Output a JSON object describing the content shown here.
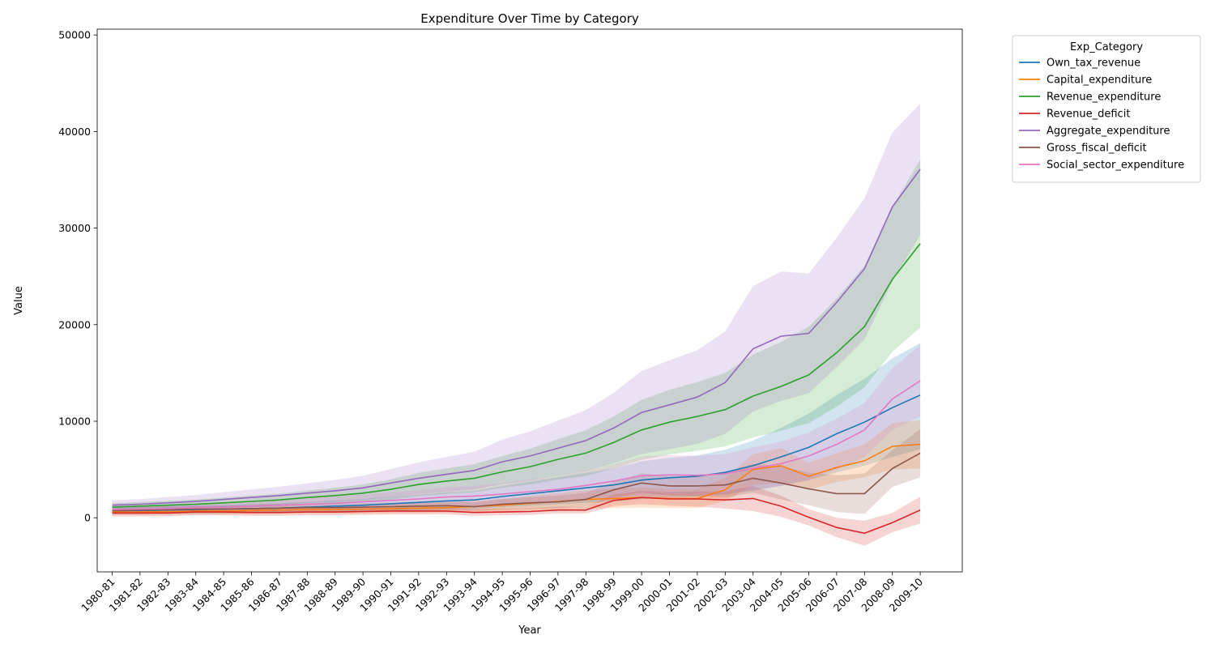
{
  "chart_data": {
    "type": "line",
    "title": "Expenditure Over Time by Category",
    "xlabel": "Year",
    "ylabel": "Value",
    "ylim": [
      -5600,
      50600
    ],
    "yticks": [
      0,
      10000,
      20000,
      30000,
      40000,
      50000
    ],
    "grid": false,
    "legend": {
      "title": "Exp_Category",
      "placement": "outside-top-right"
    },
    "categories": [
      "1980-81",
      "1981-82",
      "1982-83",
      "1983-84",
      "1984-85",
      "1985-86",
      "1986-87",
      "1987-88",
      "1988-89",
      "1989-90",
      "1990-91",
      "1991-92",
      "1992-93",
      "1993-94",
      "1994-95",
      "1995-96",
      "1996-97",
      "1997-98",
      "1998-99",
      "1999-00",
      "2000-01",
      "2001-02",
      "2002-03",
      "2003-04",
      "2004-05",
      "2005-06",
      "2006-07",
      "2007-08",
      "2008-09",
      "2009-10"
    ],
    "series": [
      {
        "name": "Own_tax_revenue",
        "color": "#1f77b4",
        "values": [
          700,
          750,
          800,
          850,
          900,
          950,
          1000,
          1100,
          1200,
          1300,
          1450,
          1600,
          1750,
          1850,
          2200,
          2500,
          2800,
          3100,
          3400,
          3900,
          4150,
          4300,
          4700,
          5400,
          6300,
          7300,
          8700,
          9900,
          11400,
          12700
        ],
        "lower": [
          350,
          380,
          400,
          430,
          450,
          480,
          500,
          550,
          600,
          650,
          720,
          800,
          870,
          920,
          1100,
          1250,
          1400,
          1550,
          1700,
          1950,
          2100,
          2200,
          2400,
          2800,
          3300,
          3900,
          4700,
          5400,
          6300,
          7100
        ],
        "upper": [
          1050,
          1120,
          1200,
          1280,
          1350,
          1420,
          1500,
          1650,
          1800,
          1950,
          2180,
          2400,
          2630,
          2780,
          3300,
          3750,
          4200,
          4650,
          5100,
          5850,
          6200,
          6450,
          7050,
          8000,
          9300,
          10800,
          12700,
          14400,
          16500,
          18100
        ]
      },
      {
        "name": "Capital_expenditure",
        "color": "#ff7f0e",
        "values": [
          600,
          600,
          650,
          700,
          700,
          750,
          800,
          850,
          850,
          900,
          950,
          1000,
          1050,
          1150,
          1300,
          1500,
          1700,
          1900,
          2000,
          2100,
          2000,
          2000,
          2900,
          5000,
          5400,
          4300,
          5200,
          5900,
          7400,
          7600
        ],
        "lower": [
          300,
          300,
          330,
          350,
          350,
          380,
          400,
          430,
          430,
          450,
          480,
          500,
          530,
          580,
          650,
          750,
          850,
          950,
          1000,
          1050,
          1000,
          1000,
          1700,
          3400,
          3600,
          2900,
          3700,
          4200,
          5000,
          5100
        ],
        "upper": [
          900,
          900,
          970,
          1050,
          1050,
          1120,
          1200,
          1270,
          1270,
          1350,
          1420,
          1500,
          1570,
          1720,
          1950,
          2250,
          2550,
          2850,
          3000,
          3150,
          3000,
          3000,
          4100,
          6600,
          7200,
          5700,
          6700,
          7600,
          9800,
          10100
        ]
      },
      {
        "name": "Revenue_expenditure",
        "color": "#2ca02c",
        "values": [
          1100,
          1200,
          1300,
          1400,
          1550,
          1700,
          1850,
          2100,
          2300,
          2550,
          2950,
          3450,
          3800,
          4100,
          4750,
          5300,
          6050,
          6700,
          7800,
          9100,
          9900,
          10500,
          11200,
          12600,
          13600,
          14800,
          17100,
          19800,
          24700,
          28400
        ],
        "lower": [
          700,
          780,
          850,
          920,
          1000,
          1100,
          1200,
          1370,
          1500,
          1650,
          1900,
          2250,
          2480,
          2650,
          3100,
          3450,
          3950,
          4350,
          5100,
          6000,
          6550,
          6950,
          7400,
          8300,
          9000,
          9800,
          11500,
          13500,
          17200,
          19700
        ],
        "upper": [
          1500,
          1620,
          1750,
          1880,
          2100,
          2300,
          2500,
          2830,
          3100,
          3450,
          4000,
          4650,
          5120,
          5550,
          6400,
          7150,
          8150,
          9050,
          10500,
          12200,
          13250,
          14050,
          15000,
          16900,
          18200,
          19800,
          22700,
          26100,
          32200,
          37100
        ]
      },
      {
        "name": "Revenue_deficit",
        "color": "#d62728",
        "values": [
          500,
          500,
          500,
          600,
          600,
          550,
          550,
          600,
          600,
          650,
          700,
          700,
          700,
          550,
          600,
          650,
          800,
          800,
          1800,
          2100,
          1950,
          1950,
          1850,
          2000,
          1200,
          50,
          -1000,
          -1600,
          -500,
          800
        ],
        "lower": [
          150,
          150,
          150,
          250,
          250,
          200,
          200,
          250,
          250,
          300,
          350,
          350,
          350,
          200,
          250,
          300,
          450,
          450,
          1200,
          1400,
          1250,
          1150,
          950,
          700,
          100,
          -800,
          -2000,
          -2900,
          -1500,
          -600
        ],
        "upper": [
          850,
          850,
          850,
          950,
          950,
          900,
          900,
          950,
          950,
          1000,
          1050,
          1050,
          1050,
          900,
          950,
          1000,
          1150,
          1150,
          2400,
          2800,
          2650,
          2750,
          2750,
          3300,
          2300,
          900,
          0,
          -300,
          500,
          2200
        ]
      },
      {
        "name": "Aggregate_expenditure",
        "color": "#9467bd",
        "values": [
          1300,
          1400,
          1550,
          1700,
          1900,
          2100,
          2300,
          2550,
          2800,
          3100,
          3600,
          4100,
          4500,
          4900,
          5800,
          6400,
          7200,
          8000,
          9300,
          10900,
          11700,
          12500,
          14000,
          17500,
          18800,
          19100,
          22300,
          25800,
          32200,
          36100
        ],
        "lower": [
          800,
          870,
          950,
          1050,
          1150,
          1250,
          1380,
          1530,
          1680,
          1850,
          2150,
          2450,
          2700,
          2950,
          3500,
          3850,
          4350,
          4850,
          5650,
          6600,
          7100,
          7650,
          8700,
          11000,
          12100,
          12900,
          15600,
          18500,
          24500,
          29300
        ],
        "upper": [
          1800,
          1930,
          2150,
          2350,
          2650,
          2950,
          3220,
          3570,
          3920,
          4350,
          5050,
          5750,
          6300,
          6850,
          8100,
          8950,
          10050,
          11150,
          12950,
          15200,
          16300,
          17350,
          19300,
          24000,
          25500,
          25300,
          29000,
          33100,
          39900,
          42900
        ]
      },
      {
        "name": "Gross_fiscal_deficit",
        "color": "#8c564b",
        "values": [
          750,
          800,
          850,
          900,
          900,
          950,
          1000,
          1050,
          1050,
          1100,
          1150,
          1200,
          1250,
          1150,
          1400,
          1550,
          1650,
          1900,
          2900,
          3600,
          3300,
          3300,
          3400,
          4100,
          3600,
          3000,
          2500,
          2500,
          5100,
          6700
        ],
        "lower": [
          450,
          480,
          500,
          550,
          550,
          580,
          600,
          650,
          650,
          680,
          720,
          750,
          780,
          700,
          850,
          950,
          1000,
          1200,
          2100,
          2600,
          2300,
          2200,
          2100,
          2600,
          1900,
          1300,
          600,
          400,
          3200,
          4200
        ],
        "upper": [
          1050,
          1120,
          1200,
          1250,
          1250,
          1320,
          1400,
          1450,
          1450,
          1520,
          1580,
          1650,
          1720,
          1600,
          1950,
          2150,
          2300,
          2600,
          3700,
          4600,
          4300,
          4400,
          4700,
          5600,
          5300,
          4700,
          4400,
          4600,
          7000,
          9200
        ]
      },
      {
        "name": "Social_sector_expenditure",
        "color": "#e377c2",
        "values": [
          850,
          900,
          950,
          1050,
          1100,
          1200,
          1300,
          1400,
          1500,
          1650,
          1800,
          1950,
          2150,
          2250,
          2450,
          2700,
          2950,
          3350,
          3800,
          4350,
          4450,
          4400,
          4550,
          5100,
          5600,
          6400,
          7600,
          9100,
          12300,
          14200
        ],
        "lower": [
          450,
          480,
          500,
          560,
          590,
          640,
          690,
          750,
          800,
          880,
          960,
          1040,
          1150,
          1200,
          1300,
          1450,
          1590,
          1800,
          2050,
          2350,
          2400,
          2400,
          2500,
          2900,
          3300,
          3950,
          4950,
          6300,
          9100,
          10500
        ],
        "upper": [
          1250,
          1320,
          1400,
          1540,
          1610,
          1760,
          1910,
          2050,
          2200,
          2420,
          2640,
          2860,
          3150,
          3300,
          3600,
          3950,
          4310,
          4900,
          5550,
          6350,
          6500,
          6400,
          6600,
          7300,
          7900,
          8850,
          10250,
          11900,
          15500,
          17900
        ]
      }
    ]
  }
}
